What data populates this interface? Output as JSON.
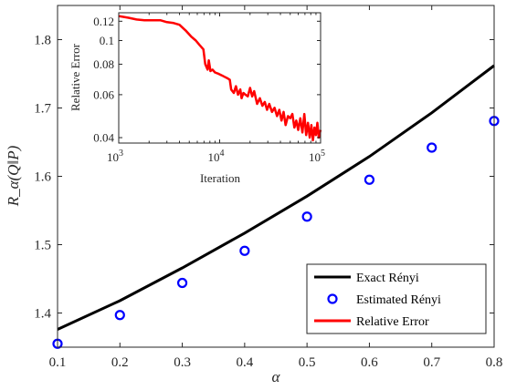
{
  "chart_data": [
    {
      "type": "line",
      "xlabel": "α",
      "ylabel": "R_α(Q‖P)",
      "xlim": [
        0.1,
        0.8
      ],
      "ylim": [
        1.35,
        1.85
      ],
      "xticks": [
        0.1,
        0.2,
        0.3,
        0.4,
        0.5,
        0.6,
        0.7,
        0.8
      ],
      "xtick_labels": [
        "0.1",
        "0.2",
        "0.3",
        "0.4",
        "0.5",
        "0.6",
        "0.7",
        "0.8"
      ],
      "yticks": [
        1.4,
        1.5,
        1.6,
        1.7,
        1.8
      ],
      "ytick_labels": [
        "1.4",
        "1.5",
        "1.6",
        "1.7",
        "1.8"
      ],
      "grid": false,
      "legend_position": "bottom-right",
      "series": [
        {
          "name": "Exact Rényi",
          "kind": "line",
          "color": "#000000",
          "x": [
            0.1,
            0.2,
            0.3,
            0.4,
            0.5,
            0.6,
            0.7,
            0.8
          ],
          "y": [
            1.376,
            1.418,
            1.466,
            1.517,
            1.571,
            1.629,
            1.693,
            1.762
          ]
        },
        {
          "name": "Estimated Rényi",
          "kind": "scatter",
          "color": "#0000ff",
          "x": [
            0.1,
            0.2,
            0.3,
            0.4,
            0.5,
            0.6,
            0.7,
            0.8
          ],
          "y": [
            1.355,
            1.397,
            1.444,
            1.491,
            1.541,
            1.595,
            1.642,
            1.681
          ]
        },
        {
          "name": "Relative Error",
          "kind": "line",
          "color": "#ff0000",
          "legend_only": true
        }
      ]
    },
    {
      "type": "line",
      "xlabel": "Iteration",
      "ylabel": "Relative Error",
      "xscale": "log",
      "yscale": "log",
      "xlim": [
        1000,
        100000
      ],
      "ylim": [
        0.038,
        0.13
      ],
      "xticks": [
        1000,
        10000,
        100000
      ],
      "xtick_labels": [
        "10^3",
        "10^4",
        "10^5"
      ],
      "yticks": [
        0.04,
        0.06,
        0.08,
        0.1,
        0.12
      ],
      "ytick_labels": [
        "0.04",
        "0.06",
        "0.08",
        "0.1",
        "0.12"
      ],
      "series": [
        {
          "name": "Relative Error",
          "color": "#ff0000",
          "x": [
            1000,
            1250,
            1500,
            1800,
            2200,
            2600,
            3000,
            3500,
            4000,
            4600,
            5200,
            5800,
            6300,
            6900,
            7200,
            7600,
            7800,
            8100,
            8500,
            9000,
            9800,
            10500,
            11200,
            12000,
            12600,
            13000,
            13800,
            14500,
            15200,
            16000,
            16500,
            17200,
            18000,
            19000,
            20000,
            21000,
            22000,
            23500,
            25000,
            26500,
            28000,
            29500,
            31000,
            33000,
            35000,
            37000,
            39000,
            41000,
            43000,
            45000,
            47500,
            50000,
            52500,
            55000,
            57500,
            60000,
            63000,
            66000,
            69000,
            72000,
            75000,
            78000,
            81000,
            84000,
            87000,
            90000,
            93000,
            96000,
            100000
          ],
          "y": [
            0.126,
            0.124,
            0.122,
            0.121,
            0.121,
            0.121,
            0.119,
            0.118,
            0.116,
            0.11,
            0.104,
            0.1,
            0.096,
            0.092,
            0.08,
            0.076,
            0.083,
            0.075,
            0.076,
            0.074,
            0.073,
            0.072,
            0.071,
            0.07,
            0.069,
            0.063,
            0.061,
            0.065,
            0.06,
            0.063,
            0.058,
            0.061,
            0.06,
            0.059,
            0.064,
            0.059,
            0.062,
            0.055,
            0.058,
            0.054,
            0.056,
            0.052,
            0.055,
            0.051,
            0.053,
            0.049,
            0.052,
            0.047,
            0.051,
            0.045,
            0.049,
            0.048,
            0.05,
            0.044,
            0.047,
            0.043,
            0.048,
            0.042,
            0.05,
            0.041,
            0.046,
            0.04,
            0.045,
            0.039,
            0.044,
            0.041,
            0.046,
            0.04,
            0.043
          ]
        }
      ]
    }
  ]
}
